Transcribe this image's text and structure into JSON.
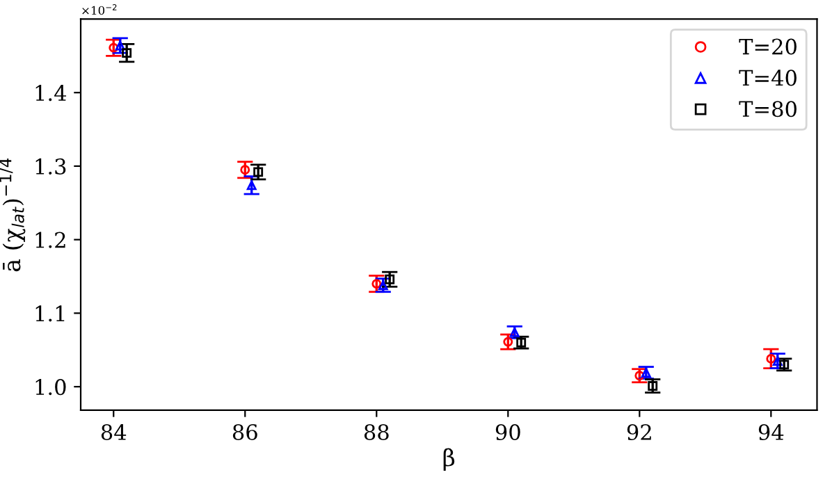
{
  "chart_data": {
    "type": "scatter",
    "xlabel": "β",
    "ylabel": "ā (χ$_{lat}$)$^{−1/4}$",
    "annotations": [
      "×10$^{−2}$"
    ],
    "xlim": [
      83.5,
      94.7
    ],
    "xticks": [
      84,
      86,
      88,
      90,
      92,
      94
    ],
    "ylim": [
      0.968,
      1.5
    ],
    "yticks": [
      {
        "value": 1.0,
        "label": "1.0"
      },
      1.1,
      1.2,
      1.3,
      1.4
    ],
    "grid": false,
    "legend": "top right",
    "series": [
      {
        "name": "T=20",
        "color": "#ff0000",
        "marker": "circle",
        "x": [
          84,
          86,
          88,
          90,
          92,
          94
        ],
        "values": [
          1.461,
          1.295,
          1.14,
          1.061,
          1.015,
          1.038
        ],
        "errors": [
          0.011,
          0.011,
          0.011,
          0.01,
          0.009,
          0.013
        ]
      },
      {
        "name": "T=40",
        "color": "#0000ff",
        "marker": "triangle",
        "x": [
          84.1,
          86.1,
          88.1,
          90.1,
          92.1,
          94.1
        ],
        "values": [
          1.464,
          1.274,
          1.138,
          1.074,
          1.019,
          1.035
        ],
        "errors": [
          0.01,
          0.012,
          0.009,
          0.008,
          0.008,
          0.01
        ]
      },
      {
        "name": "T=80",
        "color": "#000000",
        "marker": "square",
        "x": [
          84.2,
          86.2,
          88.2,
          90.2,
          92.2,
          94.2
        ],
        "values": [
          1.454,
          1.292,
          1.146,
          1.06,
          1.001,
          1.03
        ],
        "errors": [
          0.012,
          0.01,
          0.01,
          0.008,
          0.009,
          0.008
        ]
      }
    ]
  }
}
